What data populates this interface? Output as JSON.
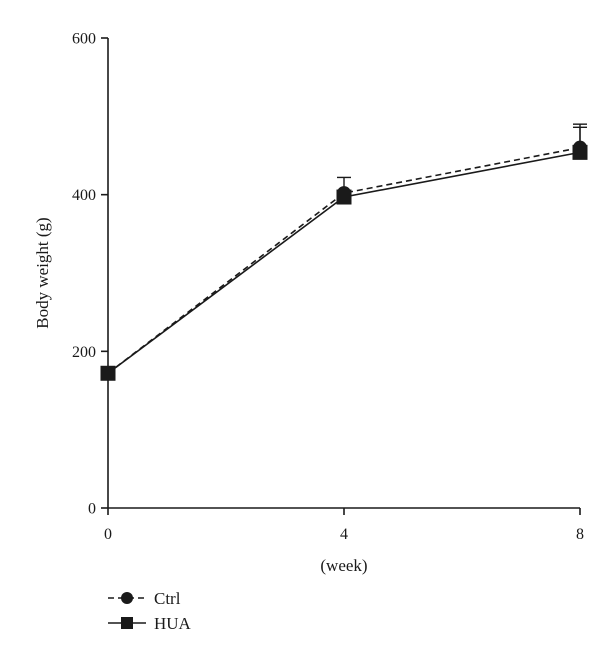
{
  "chart_data": {
    "type": "line",
    "x": [
      0,
      4,
      8
    ],
    "xlabel": "(week)",
    "ylabel": "Body weight (g)",
    "xlim": [
      0,
      8
    ],
    "ylim": [
      0,
      600
    ],
    "xticks": [
      "0",
      "4",
      "8"
    ],
    "yticks": [
      "0",
      "200",
      "400",
      "600"
    ],
    "grid": false,
    "legend_position": "bottom-left",
    "series": [
      {
        "name": "Ctrl",
        "values": [
          172,
          402,
          460
        ],
        "error": [
          0,
          20,
          30
        ],
        "marker": "circle",
        "line": "dashed",
        "color": "#1a1a1a"
      },
      {
        "name": "HUA",
        "values": [
          172,
          397,
          454
        ],
        "error": [
          0,
          0,
          32
        ],
        "marker": "square",
        "line": "solid",
        "color": "#1a1a1a"
      }
    ]
  }
}
